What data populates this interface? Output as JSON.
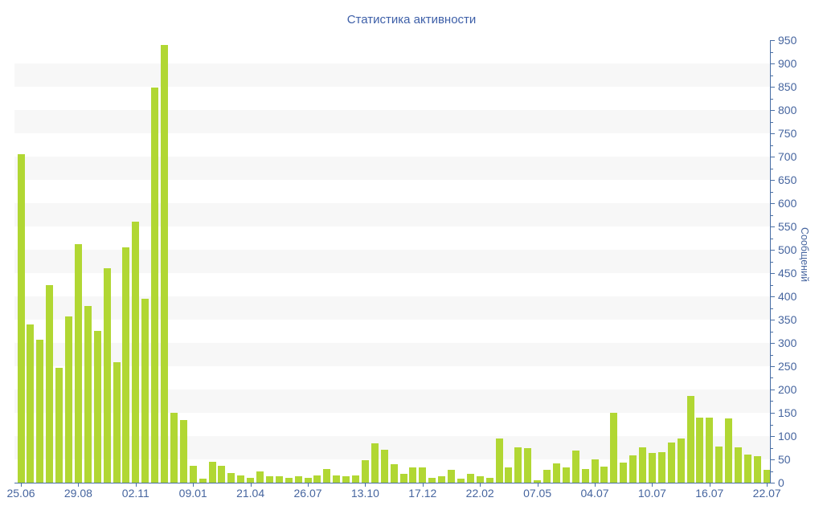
{
  "title": "Статистика активности",
  "colors": {
    "bar": "#b1d733",
    "axis": "#4a6fa5",
    "tick_text": "#46659f",
    "title_text": "#3d5fa8",
    "stripe": "#f7f7f7",
    "background": "#ffffff"
  },
  "chart_data": {
    "type": "bar",
    "title": "Статистика активности",
    "xlabel": "",
    "ylabel": "Сообщений",
    "ylim": [
      0,
      950
    ],
    "y_major_step": 50,
    "y_minor_step": 25,
    "grid": "alternating horizontal stripes, no vertical grid",
    "legend": "none",
    "y_axis_side": "right",
    "y_tick_labels": [
      "0",
      "50",
      "100",
      "150",
      "200",
      "250",
      "300",
      "350",
      "400",
      "450",
      "500",
      "550",
      "600",
      "650",
      "700",
      "750",
      "800",
      "850",
      "900",
      "950"
    ],
    "values": [
      705,
      340,
      307,
      425,
      247,
      357,
      512,
      380,
      325,
      460,
      258,
      505,
      560,
      395,
      848,
      940,
      150,
      135,
      37,
      9,
      45,
      36,
      20,
      16,
      11,
      24,
      14,
      13,
      10,
      13,
      10,
      15,
      30,
      16,
      13,
      16,
      48,
      85,
      71,
      39,
      19,
      32,
      33,
      10,
      14,
      27,
      9,
      19,
      14,
      11,
      95,
      33,
      75,
      74,
      5,
      28,
      41,
      33,
      69,
      30,
      50,
      35,
      150,
      43,
      59,
      76,
      64,
      65,
      87,
      94,
      186,
      140,
      140,
      78,
      138,
      76,
      60,
      57,
      27
    ],
    "x_tick_labels": [
      {
        "index": 0,
        "label": "25.06"
      },
      {
        "index": 6,
        "label": "29.08"
      },
      {
        "index": 12,
        "label": "02.11"
      },
      {
        "index": 18,
        "label": "09.01"
      },
      {
        "index": 24,
        "label": "21.04"
      },
      {
        "index": 30,
        "label": "26.07"
      },
      {
        "index": 36,
        "label": "13.10"
      },
      {
        "index": 42,
        "label": "17.12"
      },
      {
        "index": 48,
        "label": "22.02"
      },
      {
        "index": 54,
        "label": "07.05"
      },
      {
        "index": 60,
        "label": "04.07"
      },
      {
        "index": 66,
        "label": "10.07"
      },
      {
        "index": 72,
        "label": "16.07"
      },
      {
        "index": 78,
        "label": "22.07"
      }
    ]
  }
}
